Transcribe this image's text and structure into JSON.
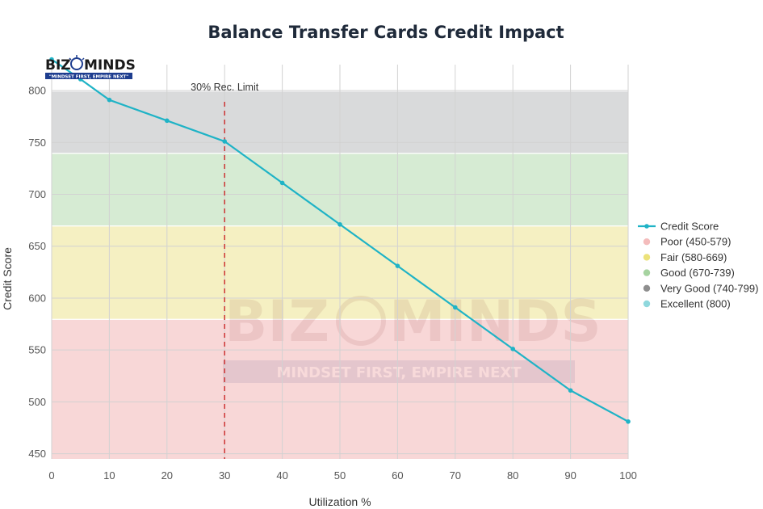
{
  "brand": {
    "name_left": "BIZ",
    "name_right": "MINDS",
    "tagline": "\"MINDSET FIRST, EMPIRE NEXT\"",
    "watermark_left": "BIZ",
    "watermark_right": "MINDS",
    "watermark_tagline": "MINDSET FIRST, EMPIRE NEXT"
  },
  "colors": {
    "line": "#1fb3c6",
    "poor": "#f8d7d7",
    "fair": "#f5f0c2",
    "good": "#d6ebd3",
    "very_good": "#d9dadb",
    "excellent": "#a8e0e3",
    "limit_line": "#cc3333"
  },
  "chart_data": {
    "type": "line",
    "title": "Balance Transfer Cards Credit Impact",
    "xlabel": "Utilization %",
    "ylabel": "Credit Score",
    "xlim": [
      0,
      100
    ],
    "ylim": [
      445,
      825
    ],
    "xticks": [
      0,
      10,
      20,
      30,
      40,
      50,
      60,
      70,
      80,
      90,
      100
    ],
    "yticks": [
      450,
      500,
      550,
      600,
      650,
      700,
      750,
      800
    ],
    "grid": true,
    "legend_position": "right",
    "series": [
      {
        "name": "Credit Score",
        "x": [
          0,
          5,
          10,
          20,
          30,
          40,
          50,
          60,
          70,
          80,
          90,
          100
        ],
        "y": [
          830,
          811,
          791,
          771,
          751,
          711,
          671,
          631,
          591,
          551,
          511,
          481
        ]
      }
    ],
    "bands": [
      {
        "name": "Poor (450-579)",
        "from": 450,
        "to": 579,
        "color_key": "poor"
      },
      {
        "name": "Fair (580-669)",
        "from": 580,
        "to": 669,
        "color_key": "fair"
      },
      {
        "name": "Good (670-739)",
        "from": 670,
        "to": 739,
        "color_key": "good"
      },
      {
        "name": "Very Good (740-799)",
        "from": 740,
        "to": 799,
        "color_key": "very_good"
      },
      {
        "name": "Excellent (800)",
        "from": 800,
        "to": 800,
        "color_key": "excellent"
      }
    ],
    "annotations": [
      {
        "text": "30% Rec. Limit",
        "x": 30,
        "style": "dashed-vertical"
      }
    ]
  }
}
